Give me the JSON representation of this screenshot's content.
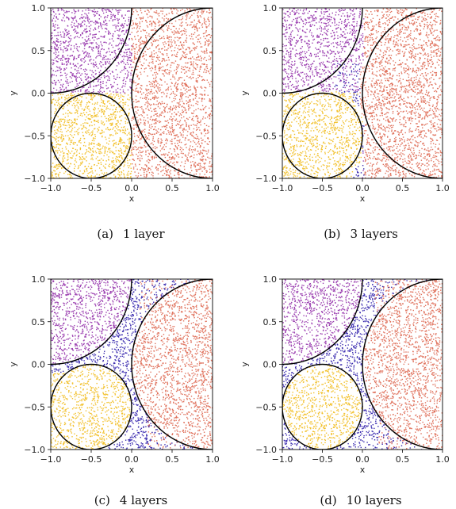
{
  "chart_data": [
    {
      "type": "scatter",
      "panel_label": "(a)",
      "caption": "1 layer",
      "layers": 1,
      "xlabel": "x",
      "ylabel": "y",
      "xlim": [
        -1.0,
        1.0
      ],
      "ylim": [
        -1.0,
        1.0
      ],
      "xticks": [
        "−1.0",
        "−0.5",
        "0.0",
        "0.5",
        "1.0"
      ],
      "yticks": [
        "1.0",
        "0.5",
        "0.0",
        "−0.5",
        "−1.0"
      ],
      "grid": false,
      "series": [],
      "colors": {
        "purple": "#9b3fb0",
        "orange": "#e0735e",
        "yellow": "#f2c12e",
        "blue": "#3b2cb0"
      },
      "boundaries": [
        {
          "shape": "circle",
          "center": [
            -0.5,
            -0.5
          ],
          "radius": 0.5
        },
        {
          "shape": "circle",
          "center": [
            1.0,
            0.0
          ],
          "radius": 1.0
        },
        {
          "shape": "circle",
          "center": [
            -1.0,
            1.0
          ],
          "radius": 1.0
        }
      ]
    },
    {
      "type": "scatter",
      "panel_label": "(b)",
      "caption": "3 layers",
      "layers": 3,
      "xlabel": "x",
      "ylabel": "y",
      "xlim": [
        -1.0,
        1.0
      ],
      "ylim": [
        -1.0,
        1.0
      ],
      "xticks": [
        "−1.0",
        "−0.5",
        "0.0",
        "0.5",
        "1.0"
      ],
      "yticks": [
        "1.0",
        "0.5",
        "0.0",
        "−0.5",
        "−1.0"
      ],
      "grid": false,
      "series": [],
      "colors": {
        "purple": "#9b3fb0",
        "orange": "#e0735e",
        "yellow": "#f2c12e",
        "blue": "#3b2cb0"
      },
      "boundaries": [
        {
          "shape": "circle",
          "center": [
            -0.5,
            -0.5
          ],
          "radius": 0.5
        },
        {
          "shape": "circle",
          "center": [
            1.0,
            0.0
          ],
          "radius": 1.0
        },
        {
          "shape": "circle",
          "center": [
            -1.0,
            1.0
          ],
          "radius": 1.0
        }
      ]
    },
    {
      "type": "scatter",
      "panel_label": "(c)",
      "caption": "4 layers",
      "layers": 4,
      "xlabel": "x",
      "ylabel": "y",
      "xlim": [
        -1.0,
        1.0
      ],
      "ylim": [
        -1.0,
        1.0
      ],
      "xticks": [
        "−1.0",
        "−0.5",
        "0.0",
        "0.5",
        "1.0"
      ],
      "yticks": [
        "1.0",
        "0.5",
        "0.0",
        "−0.5",
        "−1.0"
      ],
      "grid": false,
      "series": [],
      "colors": {
        "purple": "#9b3fb0",
        "orange": "#e0735e",
        "yellow": "#f2c12e",
        "blue": "#3b2cb0"
      },
      "boundaries": [
        {
          "shape": "circle",
          "center": [
            -0.5,
            -0.5
          ],
          "radius": 0.5
        },
        {
          "shape": "circle",
          "center": [
            1.0,
            0.0
          ],
          "radius": 1.0
        },
        {
          "shape": "circle",
          "center": [
            -1.0,
            1.0
          ],
          "radius": 1.0
        }
      ]
    },
    {
      "type": "scatter",
      "panel_label": "(d)",
      "caption": "10 layers",
      "layers": 10,
      "xlabel": "x",
      "ylabel": "y",
      "xlim": [
        -1.0,
        1.0
      ],
      "ylim": [
        -1.0,
        1.0
      ],
      "xticks": [
        "−1.0",
        "−0.5",
        "0.0",
        "0.5",
        "1.0"
      ],
      "yticks": [
        "1.0",
        "0.5",
        "0.0",
        "−0.5",
        "−1.0"
      ],
      "grid": false,
      "series": [],
      "colors": {
        "purple": "#9b3fb0",
        "orange": "#e0735e",
        "yellow": "#f2c12e",
        "blue": "#3b2cb0"
      },
      "boundaries": [
        {
          "shape": "circle",
          "center": [
            -0.5,
            -0.5
          ],
          "radius": 0.5
        },
        {
          "shape": "circle",
          "center": [
            1.0,
            0.0
          ],
          "radius": 1.0
        },
        {
          "shape": "circle",
          "center": [
            -1.0,
            1.0
          ],
          "radius": 1.0
        }
      ]
    }
  ]
}
